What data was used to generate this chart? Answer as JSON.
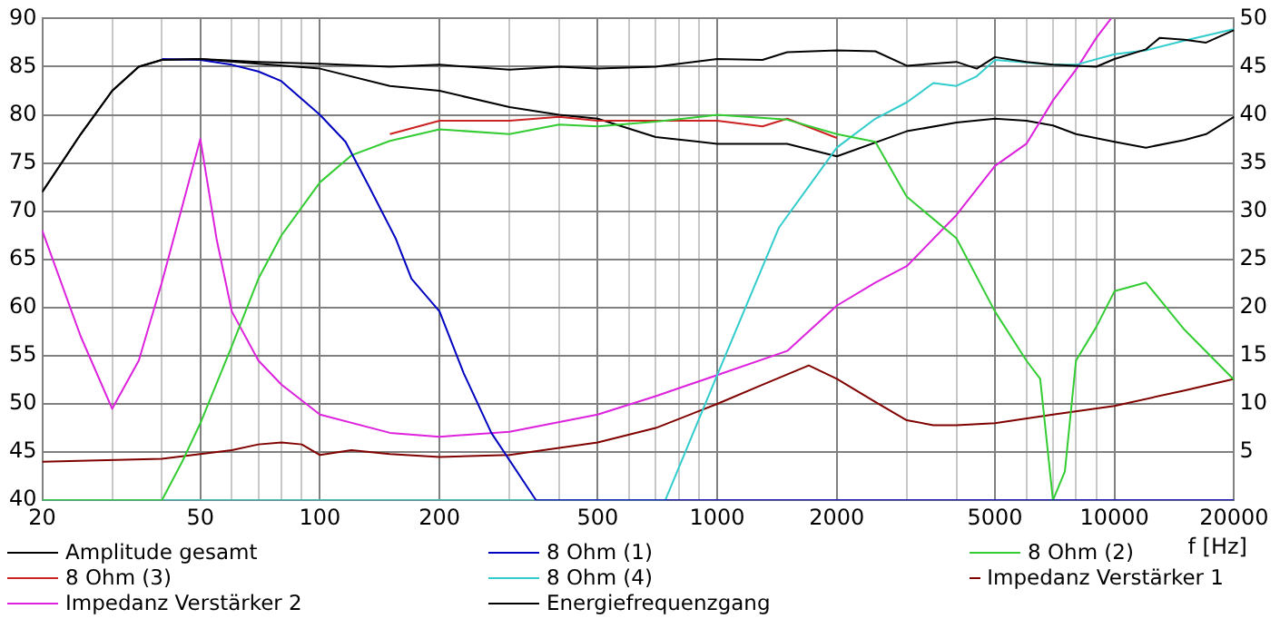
{
  "chart_data": {
    "type": "line",
    "xlabel": "f [Hz]",
    "log": "x",
    "grid": true,
    "legend": "bottom",
    "marker": "none",
    "line_style": "solid",
    "xlim": [
      20,
      20000
    ],
    "ylim": [
      40,
      90
    ],
    "y2lim": [
      0,
      50
    ],
    "xticks": [
      20,
      {
        "value": 30,
        "label": null
      },
      {
        "value": 40,
        "label": null
      },
      50,
      {
        "value": 60,
        "label": null
      },
      {
        "value": 70,
        "label": null
      },
      {
        "value": 80,
        "label": null
      },
      {
        "value": 90,
        "label": null
      },
      100,
      {
        "value": 300,
        "label": null
      },
      {
        "value": 400,
        "label": null
      },
      200,
      500,
      {
        "value": 600,
        "label": null
      },
      {
        "value": 700,
        "label": null
      },
      {
        "value": 800,
        "label": null
      },
      {
        "value": 900,
        "label": null
      },
      1000,
      2000,
      {
        "value": 3000,
        "label": null
      },
      {
        "value": 4000,
        "label": null
      },
      5000,
      {
        "value": 6000,
        "label": null
      },
      {
        "value": 7000,
        "label": null
      },
      {
        "value": 8000,
        "label": null
      },
      {
        "value": 9000,
        "label": null
      },
      10000,
      20000
    ],
    "yticks": [
      40,
      45,
      50,
      55,
      60,
      65,
      70,
      75,
      80,
      85,
      90
    ],
    "y2ticks": [
      5,
      10,
      15,
      20,
      25,
      30,
      35,
      40,
      45,
      50
    ],
    "series": [
      {
        "name": "Amplitude gesamt",
        "color": "#000000",
        "x": [
          20,
          25,
          30,
          35,
          40,
          50,
          70,
          100,
          150,
          200,
          300,
          400,
          500,
          700,
          1000,
          1300,
          1500,
          2000,
          2500,
          3000,
          4000,
          4500,
          5000,
          6000,
          7000,
          8000,
          9000,
          10000,
          12000,
          13000,
          15000,
          17000,
          20000
        ],
        "values": [
          72,
          78,
          82.5,
          85,
          85.7,
          85.8,
          85.5,
          85.3,
          85,
          85.2,
          84.7,
          85,
          84.8,
          85,
          85.8,
          85.7,
          86.5,
          86.7,
          86.6,
          85.1,
          85.5,
          84.8,
          86,
          85.5,
          85.2,
          85.1,
          85,
          85.8,
          86.8,
          88,
          87.8,
          87.5,
          88.8
        ]
      },
      {
        "name": "8 Ohm (1)",
        "color": "#0000c0",
        "x": [
          40,
          50,
          60,
          70,
          80,
          100,
          116,
          132,
          155,
          170,
          200,
          230,
          270,
          350,
          20000
        ],
        "values": [
          85.8,
          85.7,
          85.2,
          84.5,
          83.5,
          80,
          77.2,
          72.8,
          67.2,
          63,
          59.6,
          53.2,
          47,
          40,
          40
        ]
      },
      {
        "name": "8 Ohm (2)",
        "color": "#33cc33",
        "x": [
          20,
          40,
          45,
          50,
          60,
          70,
          80,
          100,
          120,
          150,
          200,
          300,
          400,
          500,
          700,
          1000,
          1500,
          2000,
          2500,
          3000,
          4000,
          5000,
          6000,
          6500,
          7000,
          7500,
          8000,
          9000,
          10000,
          12000,
          15000,
          20000
        ],
        "values": [
          40,
          40,
          44,
          48,
          56,
          63,
          67.5,
          73,
          75.8,
          77.3,
          78.5,
          78,
          79,
          78.8,
          79.3,
          80,
          79.5,
          78,
          77.2,
          71.5,
          67.2,
          59.6,
          54.5,
          52.6,
          40,
          43,
          54.5,
          58,
          61.7,
          62.6,
          57.7,
          52.5
        ]
      },
      {
        "name": "8 Ohm (3)",
        "color": "#cc2222",
        "x": [
          150,
          200,
          300,
          400,
          500,
          700,
          1000,
          1300,
          1500,
          2000
        ],
        "values": [
          78,
          79.4,
          79.4,
          79.8,
          79.4,
          79.4,
          79.4,
          78.8,
          79.6,
          77.6
        ]
      },
      {
        "name": "8 Ohm (4)",
        "color": "#33cccc",
        "x": [
          20,
          740,
          1000,
          1430,
          2000,
          2500,
          3000,
          3500,
          4000,
          4500,
          5000,
          7000,
          8000,
          10000,
          12000,
          15000,
          20000
        ],
        "values": [
          40,
          40,
          53,
          68.3,
          76.6,
          79.6,
          81.3,
          83.3,
          83,
          84,
          85.7,
          85.2,
          85.2,
          86.3,
          86.7,
          87.7,
          88.9
        ]
      },
      {
        "name": "Impedanz Verstärker 1",
        "color": "#800000",
        "axis": "y2",
        "x": [
          20,
          40,
          50,
          60,
          70,
          80,
          90,
          100,
          120,
          150,
          200,
          300,
          500,
          700,
          1000,
          1300,
          1700,
          2000,
          2500,
          3000,
          3500,
          4000,
          5000,
          7000,
          10000,
          15000,
          20000
        ],
        "values": [
          4,
          4.3,
          4.8,
          5.2,
          5.8,
          6,
          5.8,
          4.7,
          5.2,
          4.8,
          4.5,
          4.7,
          6,
          7.5,
          10,
          12,
          14,
          12.6,
          10.2,
          8.3,
          7.8,
          7.8,
          8,
          8.9,
          9.8,
          11.4,
          12.6
        ]
      },
      {
        "name": "Impedanz Verstärker 2",
        "color": "#dd22dd",
        "axis": "y2",
        "x": [
          20,
          25,
          30,
          35,
          40,
          50,
          55,
          60,
          70,
          80,
          100,
          150,
          200,
          300,
          500,
          700,
          1000,
          1500,
          2000,
          2500,
          3000,
          4000,
          5000,
          6000,
          7000,
          8000,
          9000,
          9800
        ],
        "values": [
          28,
          17,
          9.5,
          14.5,
          22.6,
          37.5,
          27,
          19.6,
          14.5,
          12,
          8.9,
          7,
          6.6,
          7.1,
          8.9,
          10.8,
          13,
          15.5,
          20.2,
          22.6,
          24.3,
          29.6,
          34.7,
          37,
          41.5,
          44.7,
          48,
          50
        ]
      },
      {
        "name": "Energiefrequenzgang",
        "color": "#000000",
        "x": [
          20,
          25,
          30,
          35,
          40,
          50,
          70,
          100,
          150,
          200,
          300,
          400,
          500,
          700,
          1000,
          1500,
          2000,
          3000,
          4000,
          5000,
          6000,
          7000,
          8000,
          10000,
          12000,
          15000,
          17000,
          20000
        ],
        "values": [
          72,
          78,
          82.5,
          85,
          85.7,
          85.8,
          85.3,
          84.8,
          83,
          82.5,
          80.8,
          80,
          79.6,
          77.7,
          77,
          77,
          75.7,
          78.3,
          79.2,
          79.6,
          79.4,
          78.9,
          78,
          77.2,
          76.6,
          77.4,
          78,
          79.8
        ]
      }
    ]
  }
}
